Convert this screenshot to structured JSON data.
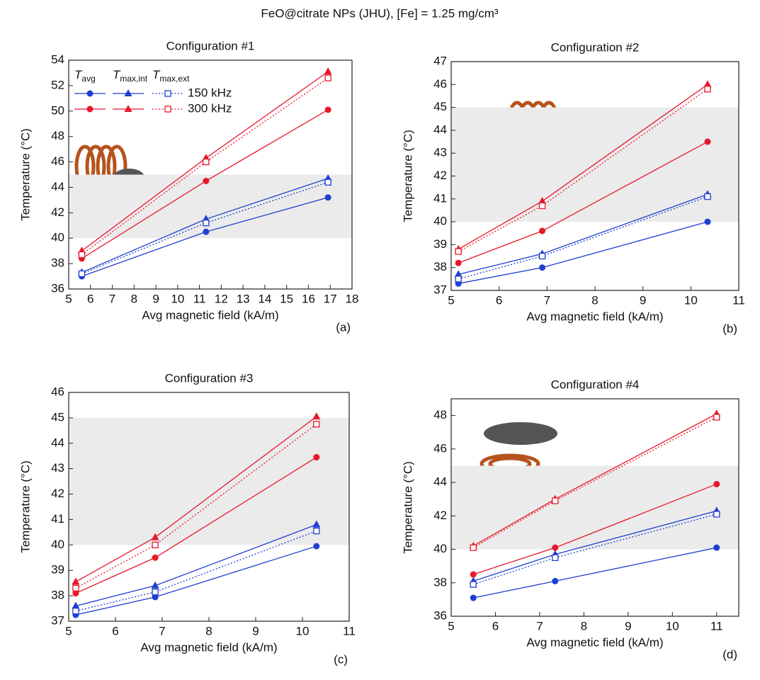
{
  "title": "FeO@citrate NPs (JHU), [Fe] = 1.25 mg/cm³",
  "chart_data": [
    {
      "type": "line",
      "title": "Configuration #1",
      "x_label": "Avg magnetic field (kA/m)",
      "y_label": "Temperature (°C)",
      "panel_label": "(a)",
      "xlim": [
        5,
        18
      ],
      "xticks": [
        5,
        6,
        7,
        8,
        9,
        10,
        11,
        12,
        13,
        14,
        15,
        16,
        17,
        18
      ],
      "ylim": [
        36,
        54
      ],
      "yticks": [
        36,
        38,
        40,
        42,
        44,
        46,
        48,
        50,
        52,
        54
      ],
      "highlight_band": [
        40,
        45
      ],
      "legend": {
        "columns": [
          {
            "symbol": "T",
            "sub": "avg"
          },
          {
            "symbol": "T",
            "sub": "max,int"
          },
          {
            "symbol": "T",
            "sub": "max,ext"
          }
        ],
        "rows": [
          "150 kHz",
          "300 kHz"
        ]
      },
      "x": [
        5.6,
        11.3,
        16.9
      ],
      "series": [
        {
          "color": "#1f3fd0",
          "marker": "circle",
          "dash": "solid",
          "values": [
            37.0,
            40.5,
            43.2
          ]
        },
        {
          "color": "#1f3fd0",
          "marker": "triangle",
          "dash": "solid",
          "values": [
            37.3,
            41.5,
            44.7
          ]
        },
        {
          "color": "#1f3fd0",
          "marker": "square-open",
          "dash": "dotted",
          "values": [
            37.2,
            41.2,
            44.4
          ]
        },
        {
          "color": "#e8182a",
          "marker": "circle",
          "dash": "solid",
          "values": [
            38.4,
            44.5,
            50.1
          ]
        },
        {
          "color": "#e8182a",
          "marker": "triangle",
          "dash": "solid",
          "values": [
            39.0,
            46.3,
            53.1
          ]
        },
        {
          "color": "#e8182a",
          "marker": "square-open",
          "dash": "dotted",
          "values": [
            38.7,
            46.0,
            52.6
          ]
        }
      ]
    },
    {
      "type": "line",
      "title": "Configuration #2",
      "x_label": "Avg magnetic field (kA/m)",
      "y_label": "Temperature (°C)",
      "panel_label": "(b)",
      "xlim": [
        5,
        11
      ],
      "xticks": [
        5,
        6,
        7,
        8,
        9,
        10,
        11
      ],
      "ylim": [
        37,
        47
      ],
      "yticks": [
        37,
        38,
        39,
        40,
        41,
        42,
        43,
        44,
        45,
        46,
        47
      ],
      "highlight_band": [
        40,
        45
      ],
      "x": [
        5.15,
        6.9,
        10.35
      ],
      "series": [
        {
          "color": "#1f3fd0",
          "marker": "circle",
          "dash": "solid",
          "values": [
            37.3,
            38.0,
            40.0
          ]
        },
        {
          "color": "#1f3fd0",
          "marker": "triangle",
          "dash": "solid",
          "values": [
            37.7,
            38.6,
            41.2
          ]
        },
        {
          "color": "#1f3fd0",
          "marker": "square-open",
          "dash": "dotted",
          "values": [
            37.5,
            38.5,
            41.1
          ]
        },
        {
          "color": "#e8182a",
          "marker": "circle",
          "dash": "solid",
          "values": [
            38.2,
            39.6,
            43.5
          ]
        },
        {
          "color": "#e8182a",
          "marker": "triangle",
          "dash": "solid",
          "values": [
            38.8,
            40.9,
            46.0
          ]
        },
        {
          "color": "#e8182a",
          "marker": "square-open",
          "dash": "dotted",
          "values": [
            38.7,
            40.7,
            45.8
          ]
        }
      ]
    },
    {
      "type": "line",
      "title": "Configuration #3",
      "x_label": "Avg magnetic field (kA/m)",
      "y_label": "Temperature (°C)",
      "panel_label": "(c)",
      "xlim": [
        5,
        11
      ],
      "xticks": [
        5,
        6,
        7,
        8,
        9,
        10,
        11
      ],
      "ylim": [
        37,
        46
      ],
      "yticks": [
        37,
        38,
        39,
        40,
        41,
        42,
        43,
        44,
        45,
        46
      ],
      "highlight_band": [
        40,
        45
      ],
      "x": [
        5.15,
        6.85,
        10.3
      ],
      "series": [
        {
          "color": "#1f3fd0",
          "marker": "circle",
          "dash": "solid",
          "values": [
            37.25,
            37.95,
            39.95
          ]
        },
        {
          "color": "#1f3fd0",
          "marker": "triangle",
          "dash": "solid",
          "values": [
            37.6,
            38.4,
            40.8
          ]
        },
        {
          "color": "#1f3fd0",
          "marker": "square-open",
          "dash": "dotted",
          "values": [
            37.4,
            38.15,
            40.55
          ]
        },
        {
          "color": "#e8182a",
          "marker": "circle",
          "dash": "solid",
          "values": [
            38.1,
            39.5,
            43.45
          ]
        },
        {
          "color": "#e8182a",
          "marker": "triangle",
          "dash": "solid",
          "values": [
            38.55,
            40.3,
            45.05
          ]
        },
        {
          "color": "#e8182a",
          "marker": "square-open",
          "dash": "dotted",
          "values": [
            38.3,
            40.0,
            44.75
          ]
        }
      ]
    },
    {
      "type": "line",
      "title": "Configuration #4",
      "x_label": "Avg magnetic field (kA/m)",
      "y_label": "Temperature (°C)",
      "panel_label": "(d)",
      "xlim": [
        5,
        11.5
      ],
      "xticks": [
        5,
        6,
        7,
        8,
        9,
        10,
        11
      ],
      "ylim": [
        36,
        49
      ],
      "yticks": [
        36,
        38,
        40,
        42,
        44,
        46,
        48
      ],
      "highlight_band": [
        40,
        45
      ],
      "x": [
        5.5,
        7.35,
        11.0
      ],
      "series": [
        {
          "color": "#1f3fd0",
          "marker": "circle",
          "dash": "solid",
          "values": [
            37.1,
            38.1,
            40.1
          ]
        },
        {
          "color": "#1f3fd0",
          "marker": "triangle",
          "dash": "solid",
          "values": [
            38.1,
            39.7,
            42.3
          ]
        },
        {
          "color": "#1f3fd0",
          "marker": "square-open",
          "dash": "dotted",
          "values": [
            37.9,
            39.5,
            42.1
          ]
        },
        {
          "color": "#e8182a",
          "marker": "circle",
          "dash": "solid",
          "values": [
            38.5,
            40.1,
            43.9
          ]
        },
        {
          "color": "#e8182a",
          "marker": "triangle",
          "dash": "solid",
          "values": [
            40.2,
            43.0,
            48.1
          ]
        },
        {
          "color": "#e8182a",
          "marker": "square-open",
          "dash": "dotted",
          "values": [
            40.1,
            42.9,
            47.9
          ]
        }
      ]
    }
  ]
}
